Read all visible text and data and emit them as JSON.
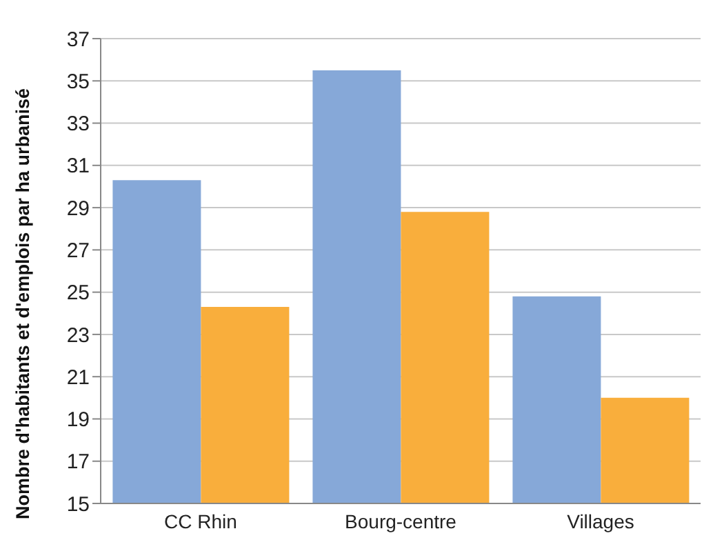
{
  "chart_data": {
    "type": "bar",
    "ylabel": "Nombre d'habitants et d'emplois par ha urbanisé",
    "categories": [
      "CC Rhin",
      "Bourg-centre",
      "Villages"
    ],
    "series": [
      {
        "color": "#86a8d8",
        "values": [
          30.3,
          35.5,
          24.8
        ]
      },
      {
        "color": "#f9ae3c",
        "values": [
          24.3,
          28.8,
          20.0
        ]
      }
    ],
    "ylim": [
      15,
      37
    ],
    "yticks": [
      15,
      17,
      19,
      21,
      23,
      25,
      27,
      29,
      31,
      33,
      35,
      37
    ],
    "grid": "y"
  }
}
